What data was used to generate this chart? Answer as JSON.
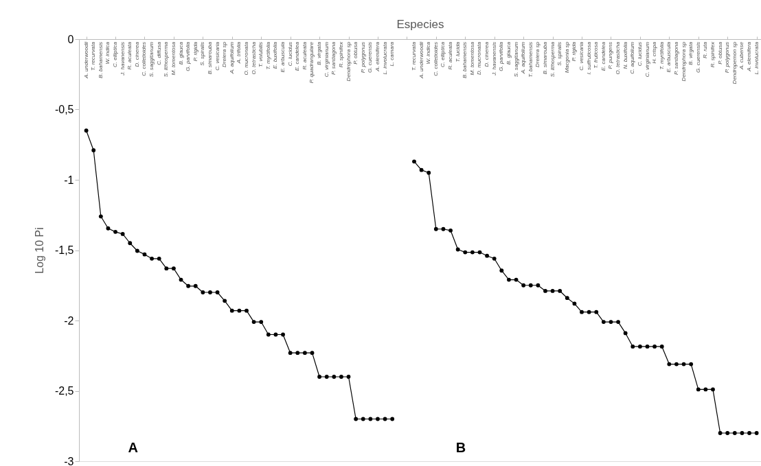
{
  "chart_data": {
    "type": "line",
    "xlabel": "Especies",
    "ylabel": "Log 10 Pi",
    "annotations": [
      "A",
      "B"
    ],
    "categories": [
      "A. underwoodii",
      "T. recurvata",
      "B. bahamensis",
      "W. indica",
      "C. elliptica",
      "J. havanensis",
      "R. aculeata",
      "D. cinerea",
      "C. colletioides",
      "S. saggitanum",
      "C. diffusa",
      "S. lithosperma",
      "M. tomentosa",
      "B. glauca",
      "G. parvifolia",
      "P. rigida",
      "S. spiralis",
      "B. simarouba",
      "C. vesicaria",
      "Dreiera sp",
      "A. aquifolium",
      "A. trifolia",
      "O. mucronata",
      "O. tetrasticha",
      "T. volubilis",
      "T. myrtifolia",
      "E. buxifolia",
      "E. arbuscula",
      "C. lucidus",
      "E. candelea",
      "R. aculeata",
      "P. quadrangulare",
      "B. virgata",
      "C. virginianum",
      "P. santiagona",
      "R. spinifex",
      "Dendrophora sp",
      "P. obtusa",
      "P. polygonus",
      "G. cuerensis",
      "A. elemifera",
      "L. involucrata",
      "L. camara",
      null,
      null,
      "T. recurvata",
      "A. underwoodii",
      "W. indica",
      "C. colletioides",
      "C. elliptica",
      "R. aculeata",
      "T. lucida",
      "B. bahamensis",
      "M. tomentosa",
      "D. mucronata",
      "D. cinerea",
      "J. havanensis",
      "G. parvifolia",
      "B. glauca",
      "S. saggitanum",
      "A. aquifolium",
      "T. bahamensis",
      "Dreiera sp",
      "B. simarouba",
      "S. lithosperma",
      "S. spiralis",
      "Macgonia sp",
      "P. rigida",
      "C. vesicaria",
      "I. suffruticosa",
      "T. fruticosa",
      "E. candelea",
      "P. pungens",
      "O. tetrasticha",
      "N. buxifolia",
      "C. aquifolium",
      "C. lucidus",
      "C. virginianum",
      "H. crispa",
      "T. myrtifolia",
      "E. arbuscula",
      "P. santiagona",
      "Dendrophora sp",
      "B. virgata",
      "G. cuerensis",
      "R. ruta",
      "R. spinifex",
      "P. obtusa",
      "P. polygonus",
      "Dendropemon sp",
      "A. cubense",
      "A. elemifera",
      "L. involucrata"
    ],
    "series": [
      {
        "color": "#000000",
        "values": [
          -0.65,
          -0.79,
          -1.26,
          -1.345,
          -1.37,
          -1.385,
          -1.45,
          -1.505,
          -1.53,
          -1.56,
          -1.56,
          -1.63,
          -1.63,
          -1.71,
          -1.755,
          -1.755,
          -1.8,
          -1.8,
          -1.8,
          -1.86,
          -1.93,
          -1.93,
          -1.93,
          -2.01,
          -2.01,
          -2.1,
          -2.1,
          -2.1,
          -2.23,
          -2.23,
          -2.23,
          -2.23,
          -2.4,
          -2.4,
          -2.4,
          -2.4,
          -2.4,
          -2.7,
          -2.7,
          -2.7,
          -2.7,
          -2.7,
          -2.7,
          null,
          null,
          null,
          null,
          null,
          null,
          null,
          null,
          null,
          null,
          null,
          null,
          null,
          null,
          null,
          null,
          null,
          null,
          null,
          null,
          null,
          null,
          null,
          null,
          null,
          null,
          null,
          null,
          null,
          null,
          null,
          null,
          null,
          null,
          null,
          null,
          null,
          null,
          null,
          null,
          null,
          null,
          null,
          null,
          null,
          null,
          null,
          null,
          null,
          null
        ]
      },
      {
        "color": "#000000",
        "values": [
          null,
          null,
          null,
          null,
          null,
          null,
          null,
          null,
          null,
          null,
          null,
          null,
          null,
          null,
          null,
          null,
          null,
          null,
          null,
          null,
          null,
          null,
          null,
          null,
          null,
          null,
          null,
          null,
          null,
          null,
          null,
          null,
          null,
          null,
          null,
          null,
          null,
          null,
          null,
          null,
          null,
          null,
          null,
          null,
          null,
          -0.87,
          -0.93,
          -0.95,
          -1.35,
          -1.35,
          -1.36,
          -1.495,
          -1.515,
          -1.515,
          -1.515,
          -1.54,
          -1.56,
          -1.645,
          -1.71,
          -1.71,
          -1.75,
          -1.75,
          -1.75,
          -1.79,
          -1.79,
          -1.79,
          -1.84,
          -1.88,
          -1.94,
          -1.94,
          -1.94,
          -2.01,
          -2.01,
          -2.01,
          -2.09,
          -2.185,
          -2.185,
          -2.185,
          -2.185,
          -2.185,
          -2.31,
          -2.31,
          -2.31,
          -2.31,
          -2.49,
          -2.49,
          -2.49,
          -2.8,
          -2.8,
          -2.8,
          -2.8,
          -2.8,
          -2.8
        ]
      }
    ],
    "ylim": [
      -3,
      0
    ],
    "yticks": [
      0,
      {
        "value": -0.5,
        "label": "-0,5"
      },
      -1,
      {
        "value": -1.5,
        "label": "-1,5"
      },
      -2,
      {
        "value": -2.5,
        "label": "-2,5"
      },
      -3
    ],
    "marker": "circle",
    "line_style": "solid",
    "grid": false,
    "legend": false
  }
}
